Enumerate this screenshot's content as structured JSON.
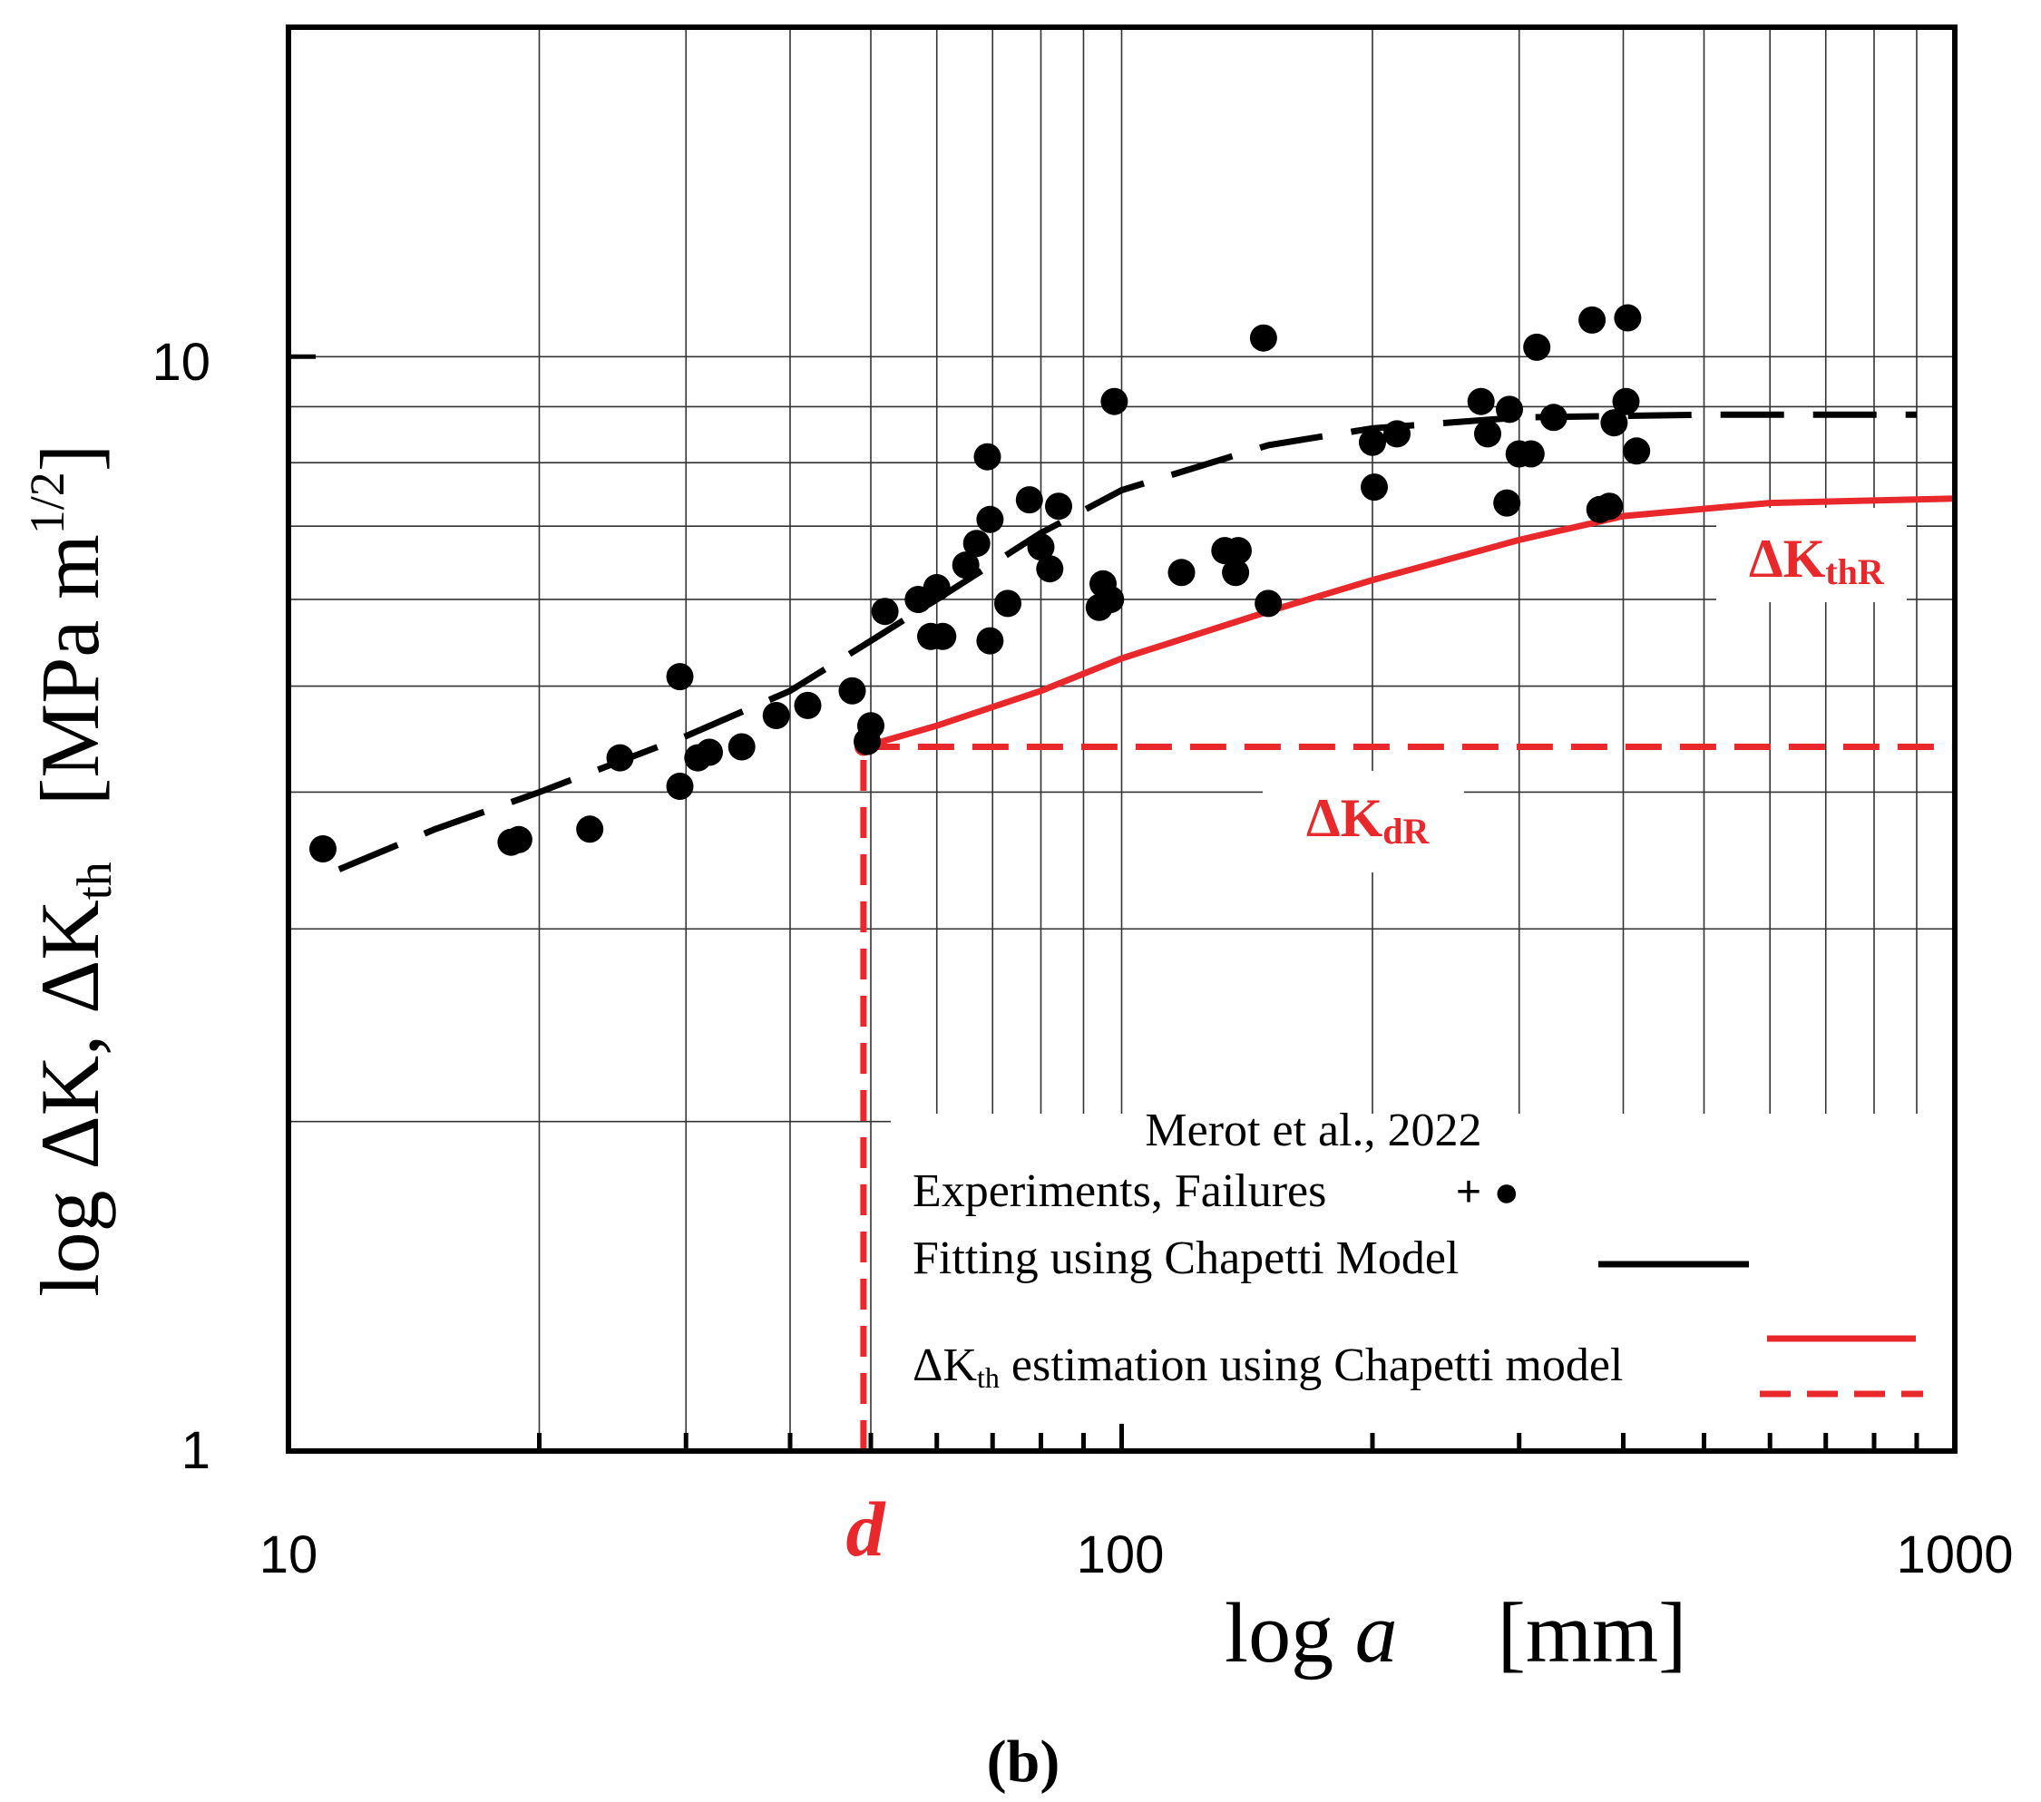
{
  "chart_data": {
    "type": "scatter",
    "scale": {
      "x": "log",
      "y": "log"
    },
    "xlim": [
      10,
      1000
    ],
    "ylim": [
      1,
      20
    ],
    "x_ticks": [
      10,
      100,
      1000
    ],
    "x_tick_labels": [
      "10",
      "100",
      "1000"
    ],
    "y_ticks": [
      1,
      10
    ],
    "y_tick_labels": [
      "1",
      "10"
    ],
    "xlabel": {
      "prefix": "log ",
      "var": "a",
      "unit": "[mm]"
    },
    "ylabel": {
      "main": "log ΔK, ΔK",
      "main_sub": "th",
      "unit_open": "[MPa m",
      "unit_sup": "1/2",
      "unit_close": "]"
    },
    "grid": true,
    "d_value": 49,
    "d_label": "d",
    "series": [
      {
        "name": "Experiments, Failures",
        "style": "black-dots",
        "points": [
          [
            11,
            3.55
          ],
          [
            18.5,
            3.6
          ],
          [
            18.9,
            3.62
          ],
          [
            23,
            3.7
          ],
          [
            25,
            4.3
          ],
          [
            29.5,
            5.1
          ],
          [
            29.5,
            4.05
          ],
          [
            31,
            4.3
          ],
          [
            32,
            4.35
          ],
          [
            35,
            4.4
          ],
          [
            38.5,
            4.7
          ],
          [
            42,
            4.8
          ],
          [
            47.5,
            4.95
          ],
          [
            49.5,
            4.45
          ],
          [
            50,
            4.6
          ],
          [
            52,
            5.85
          ],
          [
            57,
            6.0
          ],
          [
            59,
            5.55
          ],
          [
            60,
            6.15
          ],
          [
            61,
            5.55
          ],
          [
            65,
            6.45
          ],
          [
            67,
            6.75
          ],
          [
            69,
            8.1
          ],
          [
            69.5,
            7.1
          ],
          [
            69.5,
            5.5
          ],
          [
            73,
            5.95
          ],
          [
            77.5,
            7.4
          ],
          [
            80,
            6.7
          ],
          [
            82,
            6.4
          ],
          [
            84,
            7.3
          ],
          [
            94,
            5.9
          ],
          [
            95,
            6.2
          ],
          [
            97,
            6.0
          ],
          [
            98,
            9.1
          ],
          [
            118,
            6.35
          ],
          [
            133,
            6.65
          ],
          [
            137,
            6.35
          ],
          [
            138,
            6.65
          ],
          [
            148,
            10.4
          ],
          [
            150,
            5.95
          ],
          [
            200,
            8.35
          ],
          [
            201,
            7.6
          ],
          [
            214,
            8.5
          ],
          [
            270,
            9.1
          ],
          [
            275,
            8.5
          ],
          [
            290,
            7.35
          ],
          [
            292,
            8.95
          ],
          [
            300,
            8.15
          ],
          [
            310,
            8.15
          ],
          [
            315,
            10.2
          ],
          [
            330,
            8.8
          ],
          [
            367,
            10.8
          ],
          [
            375,
            7.25
          ],
          [
            385,
            7.3
          ],
          [
            390,
            8.7
          ],
          [
            403,
            9.1
          ],
          [
            405,
            10.85
          ],
          [
            415,
            8.2
          ]
        ]
      },
      {
        "name": "Fitting using Chapetti Model",
        "style": "black-dashed",
        "points": [
          [
            11.5,
            3.4
          ],
          [
            15,
            3.7
          ],
          [
            20,
            4.0
          ],
          [
            30,
            4.5
          ],
          [
            40,
            4.95
          ],
          [
            50,
            5.5
          ],
          [
            60,
            6.0
          ],
          [
            80,
            6.9
          ],
          [
            100,
            7.55
          ],
          [
            150,
            8.3
          ],
          [
            200,
            8.6
          ],
          [
            300,
            8.8
          ],
          [
            500,
            8.85
          ],
          [
            900,
            8.85
          ]
        ]
      },
      {
        "name": "ΔK_th estimation using Chapetti model",
        "style": "red-solid",
        "points": [
          [
            49,
            4.4
          ],
          [
            60,
            4.6
          ],
          [
            80,
            4.95
          ],
          [
            100,
            5.3
          ],
          [
            150,
            5.85
          ],
          [
            200,
            6.25
          ],
          [
            300,
            6.8
          ],
          [
            400,
            7.15
          ],
          [
            600,
            7.35
          ],
          [
            1000,
            7.42
          ]
        ]
      },
      {
        "name": "ΔK_dR",
        "style": "red-dashed",
        "points": [
          [
            49,
            4.4
          ],
          [
            1000,
            4.4
          ]
        ]
      },
      {
        "name": "d",
        "style": "red-dashed-vertical",
        "points": [
          [
            49,
            1
          ],
          [
            49,
            4.4
          ]
        ]
      }
    ],
    "annotations": [
      {
        "id": "kthr",
        "main": "ΔK",
        "sub": "thR"
      },
      {
        "id": "kdr",
        "main": "ΔK",
        "sub": "dR"
      }
    ],
    "legend": {
      "position": "bottom-right",
      "title": "Merot et al., 2022",
      "entries": [
        {
          "label": "Experiments, Failures",
          "symbol": "+ ●"
        },
        {
          "label": "Fitting using Chapetti Model",
          "symbol": "black-line"
        },
        {
          "label_main": "ΔK",
          "label_sub": "th",
          "label_rest": " estimation using Chapetti model",
          "symbol": "red-solid-and-dashed"
        }
      ]
    },
    "caption": "(b)"
  },
  "colors": {
    "red": "#e8282b",
    "black": "#000000",
    "grid": "#000000"
  }
}
